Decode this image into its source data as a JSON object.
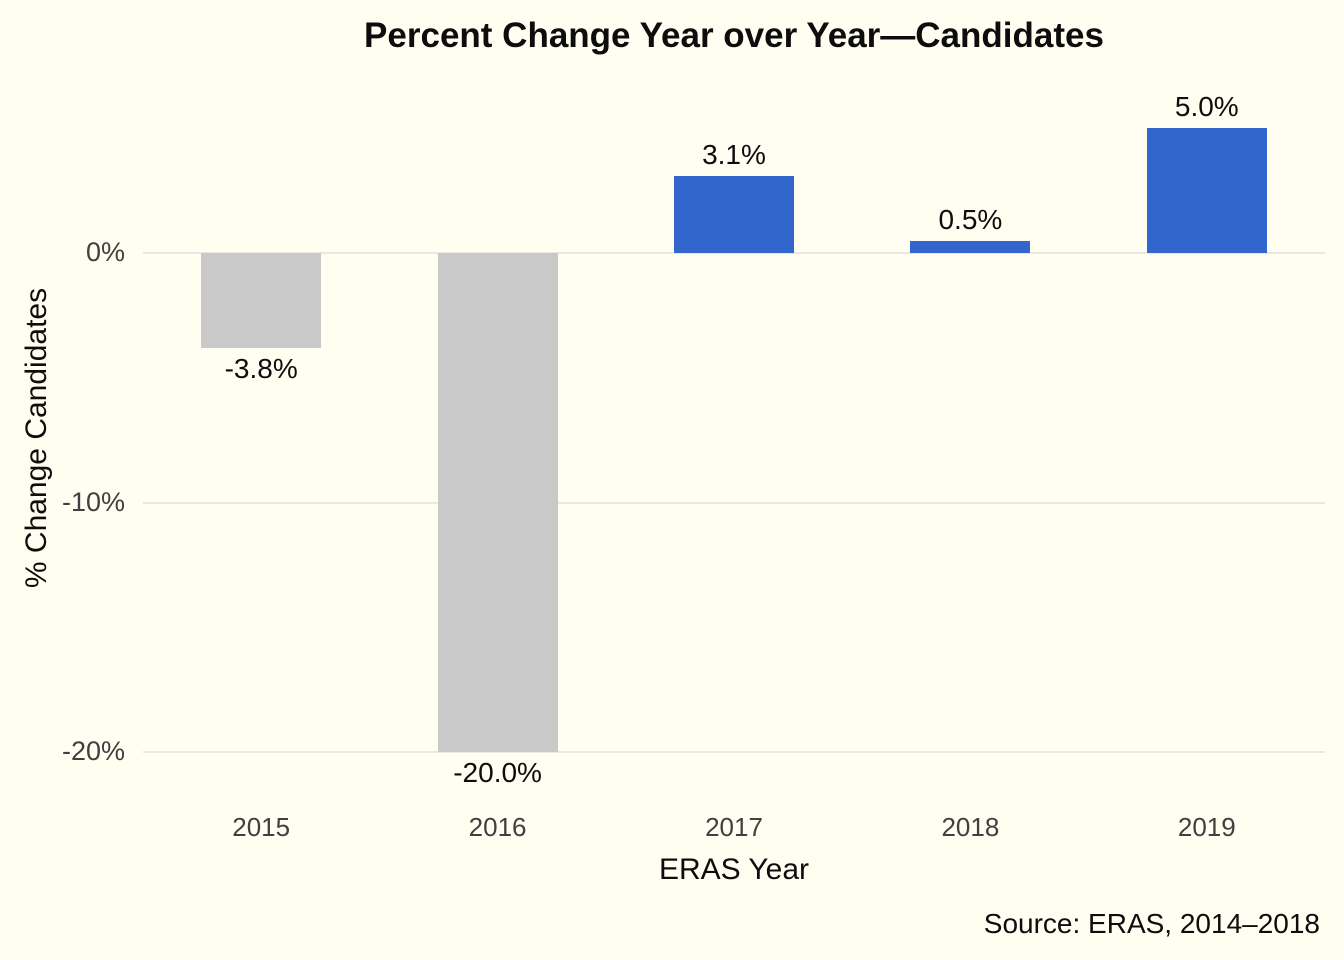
{
  "chart_data": {
    "type": "bar",
    "title": "Percent Change Year over Year—Candidates",
    "xlabel": "ERAS Year",
    "ylabel": "% Change Candidates",
    "categories": [
      "2015",
      "2016",
      "2017",
      "2018",
      "2019"
    ],
    "values": [
      -3.8,
      -20.0,
      3.1,
      0.5,
      5.0
    ],
    "bar_labels": [
      "-3.8%",
      "-20.0%",
      "3.1%",
      "0.5%",
      "5.0%"
    ],
    "yticks": [
      {
        "value": 0,
        "label": "0%"
      },
      {
        "value": -10,
        "label": "-10%"
      },
      {
        "value": -20,
        "label": "-20%"
      }
    ],
    "ylim": [
      -22,
      6
    ],
    "grid": "horizontal-only",
    "legend": "none",
    "positive_color": "#3366CC",
    "negative_color": "#C9C9C9",
    "background_color": "#FFFEF0",
    "gridline_color": "#E9E9E2",
    "source": "Source: ERAS, 2014–2018"
  }
}
